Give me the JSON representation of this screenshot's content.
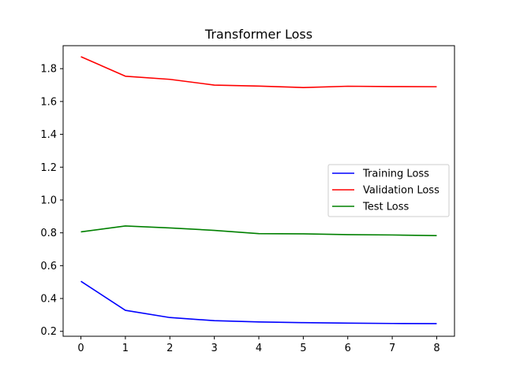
{
  "chart_data": {
    "type": "line",
    "title": "Transformer Loss",
    "xlabel": "",
    "ylabel": "",
    "x": [
      0,
      1,
      2,
      3,
      4,
      5,
      6,
      7,
      8
    ],
    "xlim": [
      -0.4,
      8.4
    ],
    "ylim": [
      0.17,
      1.94
    ],
    "xticks": [
      0,
      1,
      2,
      3,
      4,
      5,
      6,
      7,
      8
    ],
    "yticks": [
      0.2,
      0.4,
      0.6,
      0.8,
      1.0,
      1.2,
      1.4,
      1.6,
      1.8
    ],
    "ytick_labels": [
      "0.2",
      "0.4",
      "0.6",
      "0.8",
      "1.0",
      "1.2",
      "1.4",
      "1.6",
      "1.8"
    ],
    "grid": false,
    "legend_position": "center-right",
    "series": [
      {
        "name": "Training Loss",
        "color": "#0000ff",
        "values": [
          0.505,
          0.328,
          0.284,
          0.265,
          0.257,
          0.253,
          0.25,
          0.248,
          0.247
        ]
      },
      {
        "name": "Validation Loss",
        "color": "#ff0000",
        "values": [
          1.873,
          1.754,
          1.735,
          1.7,
          1.694,
          1.685,
          1.693,
          1.691,
          1.69
        ]
      },
      {
        "name": "Test Loss",
        "color": "#008000",
        "values": [
          0.806,
          0.842,
          0.83,
          0.815,
          0.795,
          0.794,
          0.789,
          0.787,
          0.783
        ]
      }
    ]
  }
}
